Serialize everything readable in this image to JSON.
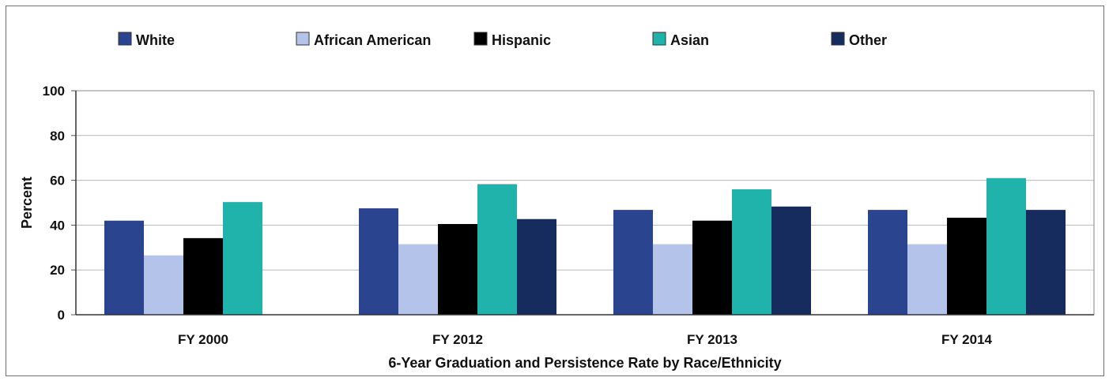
{
  "chart_data": {
    "type": "bar",
    "title": "",
    "xlabel": "6-Year Graduation and Persistence Rate by Race/Ethnicity",
    "ylabel": "Percent",
    "categories": [
      "FY 2000",
      "FY 2012",
      "FY 2013",
      "FY 2014"
    ],
    "ylim": [
      0,
      100
    ],
    "yticks": [
      "0",
      "20",
      "40",
      "60",
      "80",
      "100"
    ],
    "grid": true,
    "legend_position": "top",
    "series": [
      {
        "name": "White",
        "color": "#2b4490",
        "values": [
          42,
          47.5,
          46.8,
          46.8
        ]
      },
      {
        "name": "African American",
        "color": "#b4c3ea",
        "values": [
          26.5,
          31.5,
          31.5,
          31.5
        ]
      },
      {
        "name": "Hispanic",
        "color": "#000000",
        "values": [
          34.2,
          40.5,
          42,
          43.3
        ]
      },
      {
        "name": "Asian",
        "color": "#1fb3ac",
        "values": [
          50.3,
          58.3,
          56,
          61
        ]
      },
      {
        "name": "Other",
        "color": "#172c5e",
        "values": [
          null,
          42.7,
          48.3,
          46.8
        ]
      }
    ]
  }
}
